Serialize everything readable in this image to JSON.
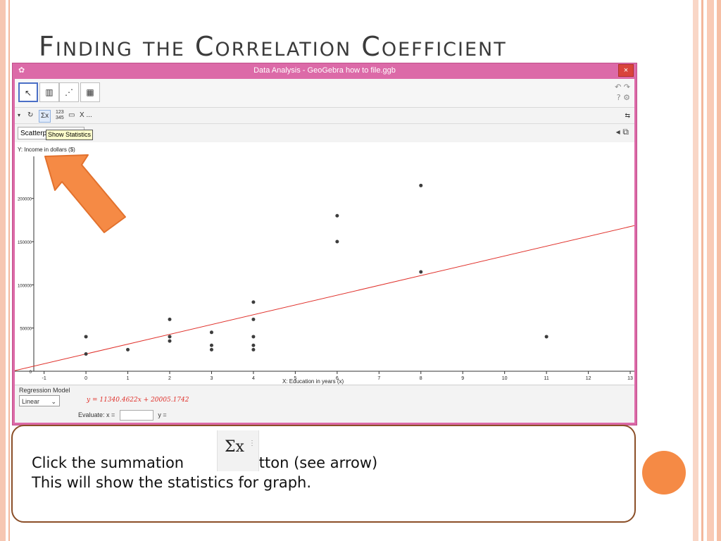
{
  "slide": {
    "title": "Finding the Correlation Coefficient",
    "instruction_line1_before": "Click the summation",
    "instruction_line1_after": "button (see arrow)",
    "instruction_line2": "This will show the statistics for graph.",
    "sigma_button_label": "Σx"
  },
  "window": {
    "title": "Data Analysis - GeoGebra how to file.ggb",
    "close_label": "×"
  },
  "subbar": {
    "sigma_label": "Σx",
    "num_icon": "123 345",
    "x_label": "X ..."
  },
  "panel": {
    "plot_select": "Scatterplot",
    "tooltip": "Show Statistics"
  },
  "bottom": {
    "regression_label": "Regression Model",
    "model_value": "Linear",
    "equation": "y = 11340.4622x + 20005.1742",
    "evaluate_label": "Evaluate:  x =",
    "y_label": "y ="
  },
  "colors": {
    "window_frame": "#dc6aa8",
    "regression_line": "#e0312b",
    "arrow": "#f58a45",
    "accent_dot": "#f58a45"
  },
  "chart_data": {
    "type": "scatter",
    "ylabel": "Y:  Income in dollars ($)",
    "xlabel": "X:  Education in years (x)",
    "xlim": [
      -1.7,
      13.1
    ],
    "ylim": [
      -5000,
      265000
    ],
    "x_ticks": [
      -1,
      0,
      1,
      2,
      3,
      4,
      5,
      6,
      7,
      8,
      9,
      10,
      11,
      12,
      13
    ],
    "y_ticks": [
      0,
      50000,
      100000,
      150000,
      200000
    ],
    "points": [
      [
        0,
        40000
      ],
      [
        0,
        20000
      ],
      [
        1,
        25000
      ],
      [
        2,
        60000
      ],
      [
        2,
        40000
      ],
      [
        2,
        35000
      ],
      [
        3,
        45000
      ],
      [
        3,
        30000
      ],
      [
        3,
        25000
      ],
      [
        4,
        80000
      ],
      [
        4,
        60000
      ],
      [
        4,
        40000
      ],
      [
        4,
        30000
      ],
      [
        4,
        25000
      ],
      [
        6,
        180000
      ],
      [
        6,
        150000
      ],
      [
        8,
        215000
      ],
      [
        8,
        115000
      ],
      [
        11,
        40000
      ]
    ],
    "regression": {
      "slope": 11340.4622,
      "intercept": 20005.1742
    },
    "grid": false
  }
}
